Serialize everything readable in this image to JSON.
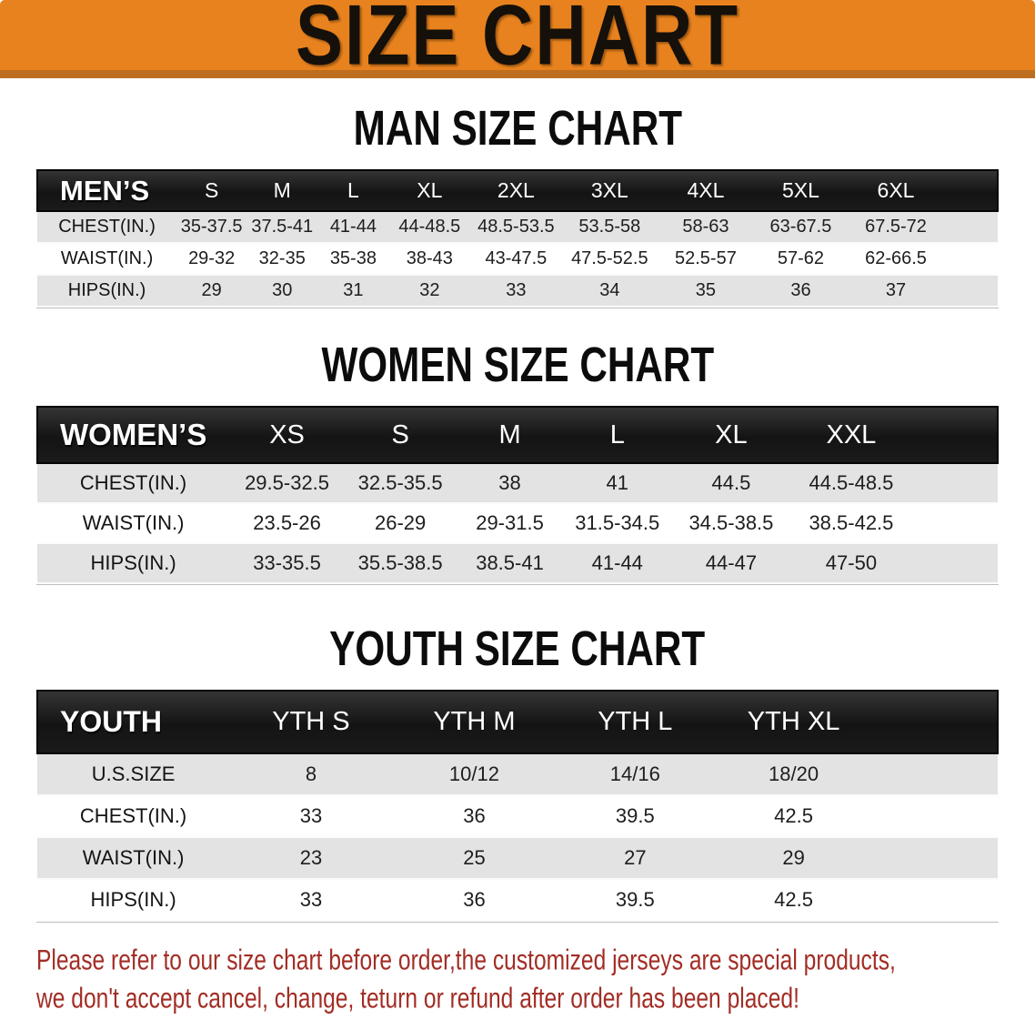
{
  "banner": {
    "title": "SIZE CHART"
  },
  "sections": {
    "men": {
      "title": "MAN SIZE CHART",
      "header_label": "MEN’S",
      "columns": [
        "S",
        "M",
        "L",
        "XL",
        "2XL",
        "3XL",
        "4XL",
        "5XL",
        "6XL"
      ],
      "rows": [
        {
          "label": "CHEST(IN.)",
          "values": [
            "35-37.5",
            "37.5-41",
            "41-44",
            "44-48.5",
            "48.5-53.5",
            "53.5-58",
            "58-63",
            "63-67.5",
            "67.5-72"
          ]
        },
        {
          "label": "WAIST(IN.)",
          "values": [
            "29-32",
            "32-35",
            "35-38",
            "38-43",
            "43-47.5",
            "47.5-52.5",
            "52.5-57",
            "57-62",
            "62-66.5"
          ]
        },
        {
          "label": "HIPS(IN.)",
          "values": [
            "29",
            "30",
            "31",
            "32",
            "33",
            "34",
            "35",
            "36",
            "37"
          ]
        }
      ]
    },
    "women": {
      "title": "WOMEN SIZE CHART",
      "header_label": "WOMEN’S",
      "columns": [
        "XS",
        "S",
        "M",
        "L",
        "XL",
        "XXL"
      ],
      "rows": [
        {
          "label": "CHEST(IN.)",
          "values": [
            "29.5-32.5",
            "32.5-35.5",
            "38",
            "41",
            "44.5",
            "44.5-48.5"
          ]
        },
        {
          "label": "WAIST(IN.)",
          "values": [
            "23.5-26",
            "26-29",
            "29-31.5",
            "31.5-34.5",
            "34.5-38.5",
            "38.5-42.5"
          ]
        },
        {
          "label": "HIPS(IN.)",
          "values": [
            "33-35.5",
            "35.5-38.5",
            "38.5-41",
            "41-44",
            "44-47",
            "47-50"
          ]
        }
      ]
    },
    "youth": {
      "title": "YOUTH SIZE CHART",
      "header_label": "YOUTH",
      "columns": [
        "YTH S",
        "YTH M",
        "YTH L",
        "YTH XL"
      ],
      "rows": [
        {
          "label": "U.S.SIZE",
          "values": [
            "8",
            "10/12",
            "14/16",
            "18/20"
          ]
        },
        {
          "label": "CHEST(IN.)",
          "values": [
            "33",
            "36",
            "39.5",
            "42.5"
          ]
        },
        {
          "label": "WAIST(IN.)",
          "values": [
            "23",
            "25",
            "27",
            "29"
          ]
        },
        {
          "label": "HIPS(IN.)",
          "values": [
            "33",
            "36",
            "39.5",
            "42.5"
          ]
        }
      ]
    }
  },
  "disclaimer": {
    "line1": "Please refer to our size chart before order,the customized jerseys are special products,",
    "line2": "we don't accept cancel, change, teturn or refund after order has been placed!"
  },
  "colors": {
    "banner_orange": "#e8821e",
    "banner_strip": "#bd6e1e",
    "header_black": "#1a1a1a",
    "row_gray": "#e3e3e3",
    "disclaimer_red": "#a22d25"
  }
}
